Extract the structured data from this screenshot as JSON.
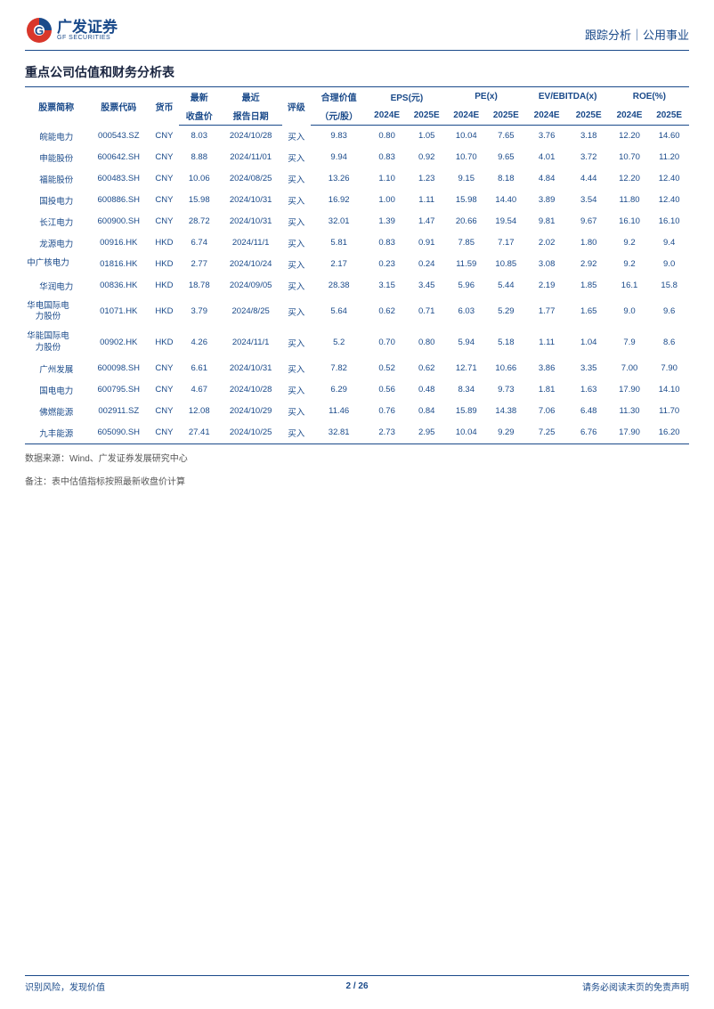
{
  "header": {
    "logo_cn": "广发证券",
    "logo_en": "GF SECURITIES",
    "right": "跟踪分析｜公用事业"
  },
  "title": "重点公司估值和财务分析表",
  "table": {
    "head": {
      "name": "股票简称",
      "code": "股票代码",
      "currency": "货币",
      "close_top": "最新",
      "close_bot": "收盘价",
      "date_top": "最近",
      "date_bot": "报告日期",
      "rating": "评级",
      "fair_top": "合理价值",
      "fair_bot": "（元/股）",
      "eps": "EPS(元)",
      "pe": "PE(x)",
      "evebitda": "EV/EBITDA(x)",
      "roe": "ROE(%)",
      "y24": "2024E",
      "y25": "2025E"
    },
    "rows": [
      {
        "name": "皖能电力",
        "code": "000543.SZ",
        "cur": "CNY",
        "close": "8.03",
        "date": "2024/10/28",
        "rating": "买入",
        "fair": "9.83",
        "eps24": "0.80",
        "eps25": "1.05",
        "pe24": "10.04",
        "pe25": "7.65",
        "ev24": "3.76",
        "ev25": "3.18",
        "roe24": "12.20",
        "roe25": "14.60"
      },
      {
        "name": "申能股份",
        "code": "600642.SH",
        "cur": "CNY",
        "close": "8.88",
        "date": "2024/11/01",
        "rating": "买入",
        "fair": "9.94",
        "eps24": "0.83",
        "eps25": "0.92",
        "pe24": "10.70",
        "pe25": "9.65",
        "ev24": "4.01",
        "ev25": "3.72",
        "roe24": "10.70",
        "roe25": "11.20"
      },
      {
        "name": "福能股份",
        "code": "600483.SH",
        "cur": "CNY",
        "close": "10.06",
        "date": "2024/08/25",
        "rating": "买入",
        "fair": "13.26",
        "eps24": "1.10",
        "eps25": "1.23",
        "pe24": "9.15",
        "pe25": "8.18",
        "ev24": "4.84",
        "ev25": "4.44",
        "roe24": "12.20",
        "roe25": "12.40"
      },
      {
        "name": "国投电力",
        "code": "600886.SH",
        "cur": "CNY",
        "close": "15.98",
        "date": "2024/10/31",
        "rating": "买入",
        "fair": "16.92",
        "eps24": "1.00",
        "eps25": "1.11",
        "pe24": "15.98",
        "pe25": "14.40",
        "ev24": "3.89",
        "ev25": "3.54",
        "roe24": "11.80",
        "roe25": "12.40"
      },
      {
        "name": "长江电力",
        "code": "600900.SH",
        "cur": "CNY",
        "close": "28.72",
        "date": "2024/10/31",
        "rating": "买入",
        "fair": "32.01",
        "eps24": "1.39",
        "eps25": "1.47",
        "pe24": "20.66",
        "pe25": "19.54",
        "ev24": "9.81",
        "ev25": "9.67",
        "roe24": "16.10",
        "roe25": "16.10"
      },
      {
        "name": "龙源电力",
        "code": "00916.HK",
        "cur": "HKD",
        "close": "6.74",
        "date": "2024/11/1",
        "rating": "买入",
        "fair": "5.81",
        "eps24": "0.83",
        "eps25": "0.91",
        "pe24": "7.85",
        "pe25": "7.17",
        "ev24": "2.02",
        "ev25": "1.80",
        "roe24": "9.2",
        "roe25": "9.4"
      },
      {
        "name": "中广核电力",
        "code": "01816.HK",
        "cur": "HKD",
        "close": "2.77",
        "date": "2024/10/24",
        "rating": "买入",
        "fair": "2.17",
        "eps24": "0.23",
        "eps25": "0.24",
        "pe24": "11.59",
        "pe25": "10.85",
        "ev24": "3.08",
        "ev25": "2.92",
        "roe24": "9.2",
        "roe25": "9.0",
        "wrap": true
      },
      {
        "name": "华润电力",
        "code": "00836.HK",
        "cur": "HKD",
        "close": "18.78",
        "date": "2024/09/05",
        "rating": "买入",
        "fair": "28.38",
        "eps24": "3.15",
        "eps25": "3.45",
        "pe24": "5.96",
        "pe25": "5.44",
        "ev24": "2.19",
        "ev25": "1.85",
        "roe24": "16.1",
        "roe25": "15.8"
      },
      {
        "name": "华电国际电力股份",
        "code": "01071.HK",
        "cur": "HKD",
        "close": "3.79",
        "date": "2024/8/25",
        "rating": "买入",
        "fair": "5.64",
        "eps24": "0.62",
        "eps25": "0.71",
        "pe24": "6.03",
        "pe25": "5.29",
        "ev24": "1.77",
        "ev25": "1.65",
        "roe24": "9.0",
        "roe25": "9.6",
        "wrap": true
      },
      {
        "name": "华能国际电力股份",
        "code": "00902.HK",
        "cur": "HKD",
        "close": "4.26",
        "date": "2024/11/1",
        "rating": "买入",
        "fair": "5.2",
        "eps24": "0.70",
        "eps25": "0.80",
        "pe24": "5.94",
        "pe25": "5.18",
        "ev24": "1.11",
        "ev25": "1.04",
        "roe24": "7.9",
        "roe25": "8.6",
        "wrap": true
      },
      {
        "name": "广州发展",
        "code": "600098.SH",
        "cur": "CNY",
        "close": "6.61",
        "date": "2024/10/31",
        "rating": "买入",
        "fair": "7.82",
        "eps24": "0.52",
        "eps25": "0.62",
        "pe24": "12.71",
        "pe25": "10.66",
        "ev24": "3.86",
        "ev25": "3.35",
        "roe24": "7.00",
        "roe25": "7.90"
      },
      {
        "name": "国电电力",
        "code": "600795.SH",
        "cur": "CNY",
        "close": "4.67",
        "date": "2024/10/28",
        "rating": "买入",
        "fair": "6.29",
        "eps24": "0.56",
        "eps25": "0.48",
        "pe24": "8.34",
        "pe25": "9.73",
        "ev24": "1.81",
        "ev25": "1.63",
        "roe24": "17.90",
        "roe25": "14.10"
      },
      {
        "name": "佛燃能源",
        "code": "002911.SZ",
        "cur": "CNY",
        "close": "12.08",
        "date": "2024/10/29",
        "rating": "买入",
        "fair": "11.46",
        "eps24": "0.76",
        "eps25": "0.84",
        "pe24": "15.89",
        "pe25": "14.38",
        "ev24": "7.06",
        "ev25": "6.48",
        "roe24": "11.30",
        "roe25": "11.70"
      },
      {
        "name": "九丰能源",
        "code": "605090.SH",
        "cur": "CNY",
        "close": "27.41",
        "date": "2024/10/25",
        "rating": "买入",
        "fair": "32.81",
        "eps24": "2.73",
        "eps25": "2.95",
        "pe24": "10.04",
        "pe25": "9.29",
        "ev24": "7.25",
        "ev25": "6.76",
        "roe24": "17.90",
        "roe25": "16.20"
      }
    ]
  },
  "source": "数据来源：Wind、广发证券发展研究中心",
  "note": "备注：表中估值指标按照最新收盘价计算",
  "footer": {
    "left": "识别风险，发现价值",
    "center": "2 / 26",
    "right": "请务必阅读末页的免责声明"
  },
  "colors": {
    "brand": "#1a4a8a",
    "accent": "#d9372b"
  }
}
